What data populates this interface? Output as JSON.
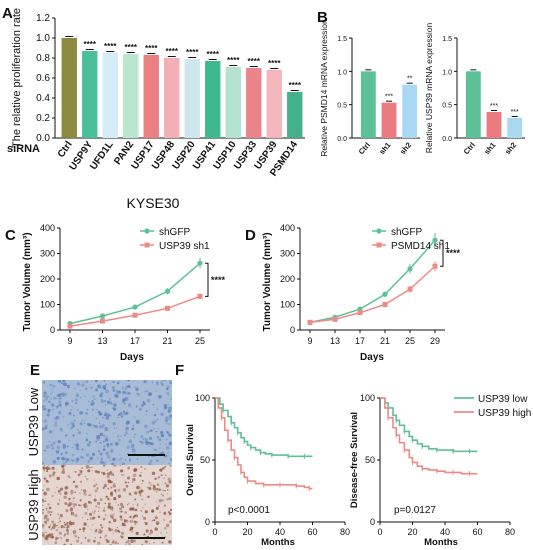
{
  "panel_labels": {
    "A": "A",
    "B": "B",
    "C": "C",
    "D": "D",
    "E": "E",
    "F": "F"
  },
  "chart_data": [
    {
      "id": "A",
      "type": "bar",
      "ylabel": "The relative proliferation rate",
      "xlabel": "KYSE30",
      "row_label": "siRNA",
      "categories": [
        "Ctrl",
        "USP9Y",
        "UFD1L",
        "PAN2",
        "USP17",
        "USP48",
        "USP20",
        "USP41",
        "USP10",
        "USP33",
        "USP39",
        "PSMD14"
      ],
      "values": [
        1.0,
        0.87,
        0.85,
        0.84,
        0.83,
        0.8,
        0.79,
        0.77,
        0.71,
        0.7,
        0.68,
        0.46
      ],
      "significance": [
        "",
        "****",
        "****",
        "****",
        "****",
        "****",
        "****",
        "****",
        "****",
        "****",
        "****",
        "****"
      ],
      "colors": [
        "#8b8a3e",
        "#4bbf9a",
        "#d4ecf7",
        "#b9e6cf",
        "#e97f82",
        "#f2b0b4",
        "#cfe6ef",
        "#3fb88f",
        "#b3e2cf",
        "#e8848a",
        "#f4b6b8",
        "#45b08b"
      ],
      "ylim": [
        0,
        1.2
      ],
      "yticks": [
        "0.0",
        "0.2",
        "0.4",
        "0.6",
        "0.8",
        "1.0",
        "1.2"
      ]
    },
    {
      "id": "B1",
      "type": "bar",
      "ylabel": "Relative PSMD14 mRNA expression",
      "categories": [
        "Ctrl",
        "sh1",
        "sh2"
      ],
      "values": [
        1.0,
        0.53,
        0.8
      ],
      "significance": [
        "",
        "***",
        "**"
      ],
      "colors": [
        "#5cc197",
        "#ea7b80",
        "#a9d9f2"
      ],
      "ylim": [
        0,
        1.5
      ],
      "yticks": [
        "0.0",
        "0.5",
        "1.0",
        "1.5"
      ]
    },
    {
      "id": "B2",
      "type": "bar",
      "ylabel": "Relative USP39 mRNA expression",
      "categories": [
        "Ctrl",
        "sh1",
        "sh2"
      ],
      "values": [
        1.0,
        0.39,
        0.3
      ],
      "significance": [
        "",
        "***",
        "***"
      ],
      "colors": [
        "#5cc197",
        "#ea7b80",
        "#a9d9f2"
      ],
      "ylim": [
        0,
        1.5
      ],
      "yticks": [
        "0.0",
        "0.5",
        "1.0",
        "1.5"
      ]
    },
    {
      "id": "C",
      "type": "line",
      "ylabel": "Tumor Volume (mm³)",
      "xlabel": "Days",
      "x": [
        9,
        13,
        17,
        21,
        25
      ],
      "xticks": [
        "9",
        "13",
        "17",
        "21",
        "25"
      ],
      "ylim": [
        0,
        400
      ],
      "yticks": [
        "0",
        "100",
        "200",
        "300",
        "400"
      ],
      "series": [
        {
          "name": "shGFP",
          "color": "#5cc197",
          "values": [
            25,
            55,
            90,
            152,
            262
          ]
        },
        {
          "name": "USP39 sh1",
          "color": "#ec8a86",
          "values": [
            15,
            35,
            58,
            85,
            132
          ]
        }
      ],
      "significance": "****"
    },
    {
      "id": "D",
      "type": "line",
      "ylabel": "Tumor Volume (mm³)",
      "xlabel": "Days",
      "x": [
        9,
        13,
        17,
        21,
        25,
        29
      ],
      "xticks": [
        "9",
        "13",
        "17",
        "21",
        "25",
        "29"
      ],
      "ylim": [
        0,
        400
      ],
      "yticks": [
        "0",
        "100",
        "200",
        "300",
        "400"
      ],
      "series": [
        {
          "name": "shGFP",
          "color": "#5cc197",
          "values": [
            30,
            50,
            82,
            140,
            240,
            352
          ]
        },
        {
          "name": "PSMD14 sh1",
          "color": "#ec8a86",
          "values": [
            30,
            42,
            68,
            100,
            160,
            250
          ]
        }
      ],
      "significance": "****"
    },
    {
      "id": "F1",
      "type": "line",
      "ylabel": "Overall Survival",
      "xlabel": "Months",
      "xlim": [
        0,
        80
      ],
      "xticks": [
        "0",
        "20",
        "40",
        "60",
        "80"
      ],
      "ylim": [
        0,
        100
      ],
      "yticks": [
        "0",
        "50",
        "100"
      ],
      "series": [
        {
          "color": "#5cc197",
          "x": [
            0,
            3,
            5,
            8,
            10,
            12,
            14,
            16,
            18,
            20,
            22,
            25,
            28,
            31,
            35,
            40,
            45,
            50,
            55,
            60
          ],
          "values": [
            100,
            95,
            90,
            85,
            80,
            76,
            72,
            68,
            65,
            62,
            60,
            58,
            56,
            55,
            54,
            54,
            53,
            53,
            53,
            53
          ]
        },
        {
          "color": "#ec8a86",
          "x": [
            0,
            2,
            4,
            6,
            8,
            10,
            12,
            14,
            16,
            18,
            20,
            25,
            30,
            35,
            40,
            45,
            50,
            55,
            58,
            60
          ],
          "values": [
            100,
            92,
            84,
            74,
            66,
            58,
            52,
            46,
            40,
            36,
            33,
            31,
            30,
            30,
            30,
            30,
            29,
            28,
            27,
            27
          ]
        }
      ],
      "annotation": "p<0.0001"
    },
    {
      "id": "F2",
      "type": "line",
      "ylabel": "Disease-free Survival",
      "xlabel": "Months",
      "xlim": [
        0,
        80
      ],
      "xticks": [
        "0",
        "20",
        "40",
        "60",
        "80"
      ],
      "ylim": [
        0,
        100
      ],
      "yticks": [
        "0",
        "50",
        "100"
      ],
      "series": [
        {
          "name": "USP39 low",
          "color": "#5cc197",
          "x": [
            0,
            3,
            5,
            8,
            10,
            12,
            15,
            18,
            20,
            23,
            26,
            30,
            35,
            40,
            45,
            50,
            55,
            60
          ],
          "values": [
            100,
            96,
            92,
            86,
            82,
            78,
            73,
            69,
            66,
            63,
            61,
            59,
            58,
            58,
            57,
            57,
            57,
            57
          ]
        },
        {
          "name": "USP39 high",
          "color": "#ec8a86",
          "x": [
            0,
            3,
            5,
            8,
            10,
            12,
            15,
            18,
            20,
            23,
            26,
            30,
            35,
            40,
            45,
            50,
            55,
            60
          ],
          "values": [
            100,
            92,
            84,
            76,
            70,
            64,
            58,
            52,
            48,
            45,
            43,
            42,
            41,
            40,
            40,
            39,
            39,
            39
          ]
        }
      ],
      "annotation": "p=0.0127"
    }
  ],
  "ihc": {
    "top_label": "USP39 Low",
    "bottom_label": "USP39 High",
    "low_base": "#a8bcd8",
    "low_stain": "#5b7fb8",
    "high_base": "#e4d6cf",
    "high_stain": "#8f5545"
  }
}
